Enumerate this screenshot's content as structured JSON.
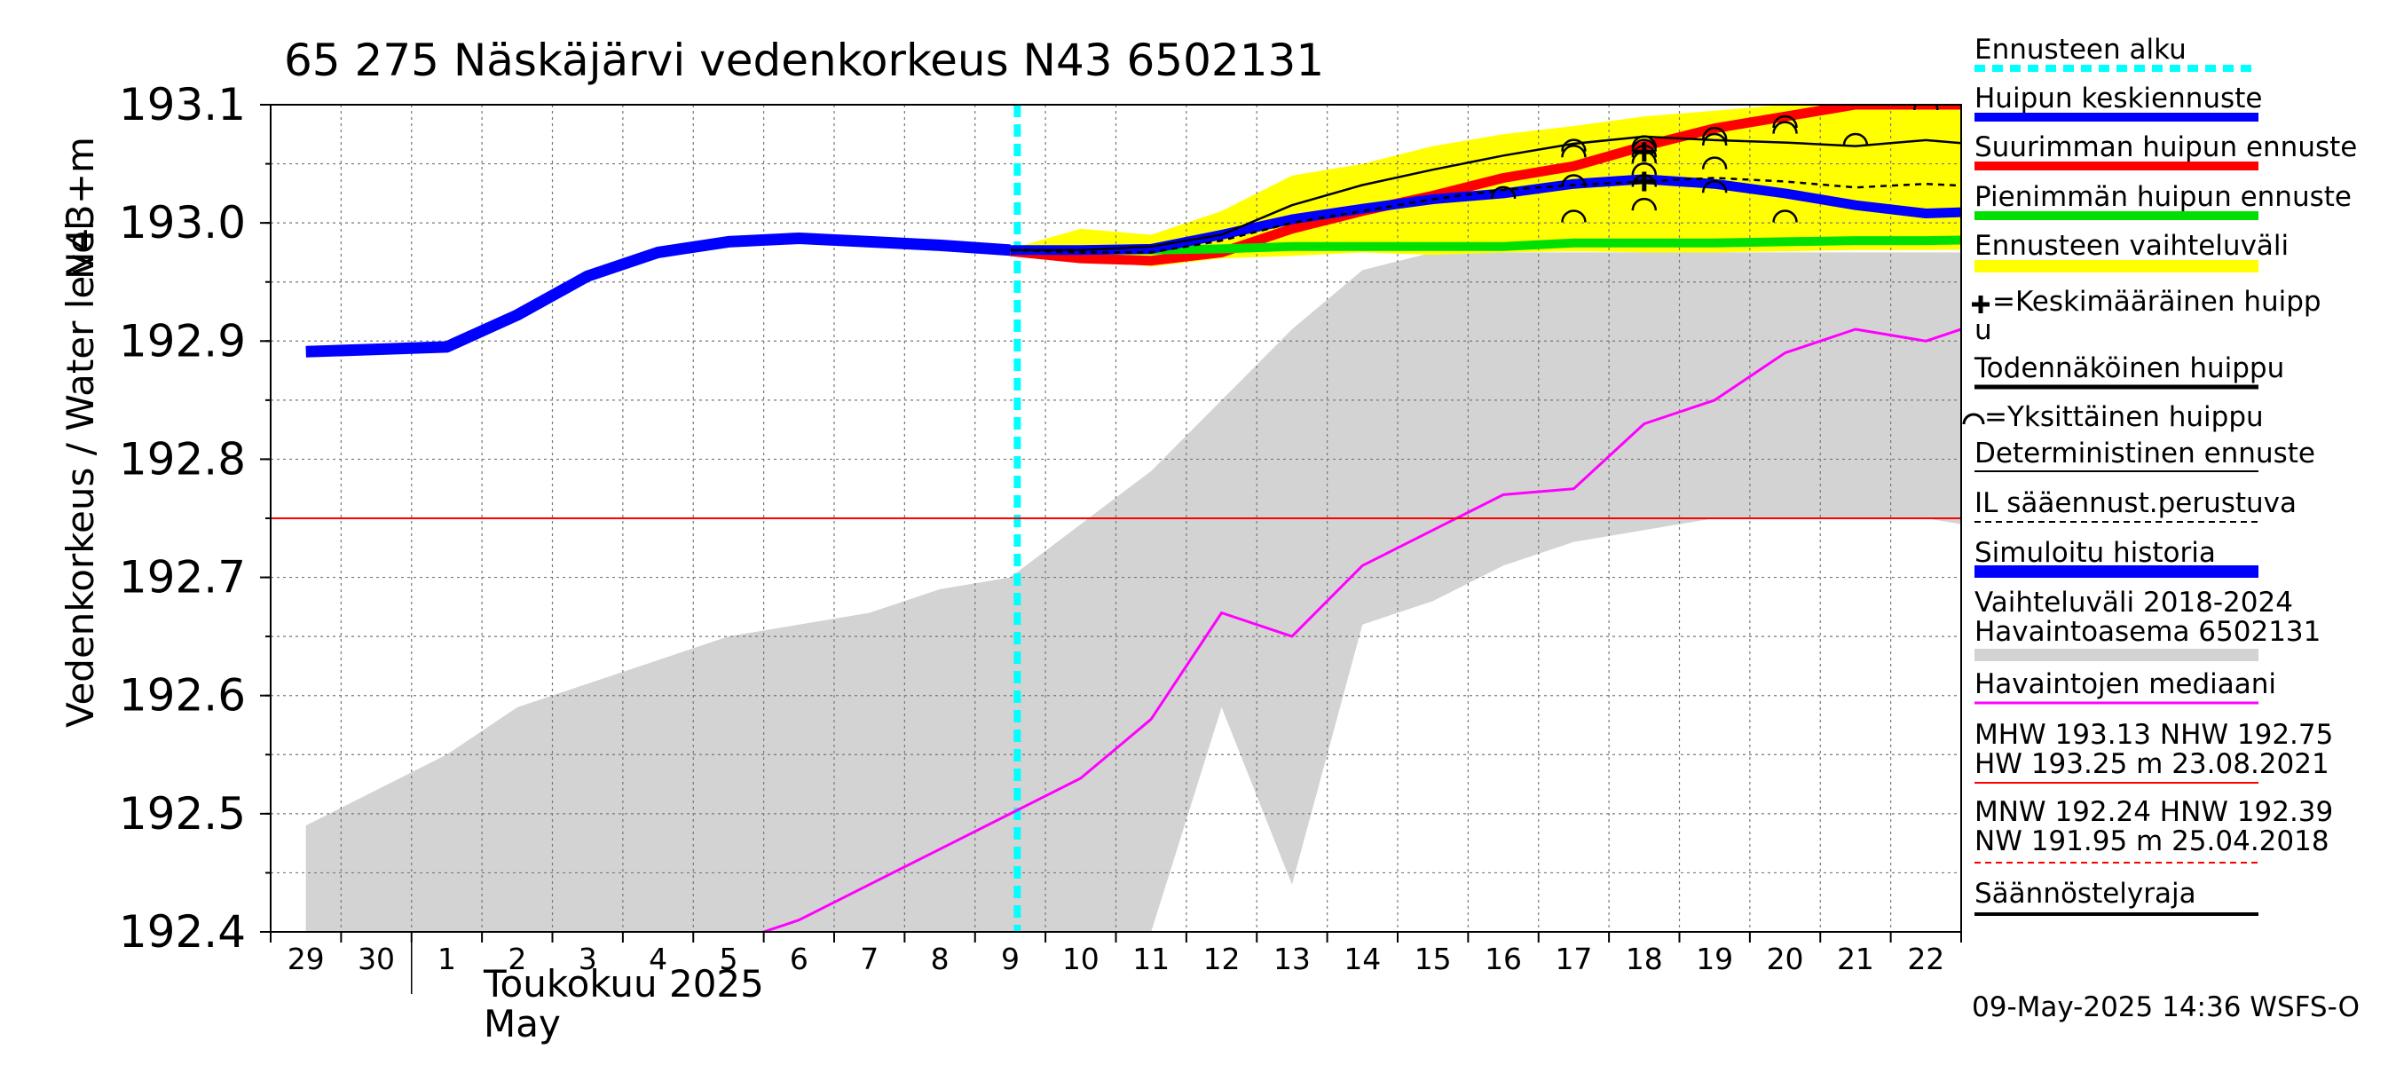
{
  "chart_data": {
    "type": "line",
    "title": "65 275 Näskäjärvi vedenkorkeus N43 6502131",
    "ylabel": "Vedenkorkeus / Water level",
    "yunit": "N43+m",
    "ylim": [
      192.4,
      193.1
    ],
    "yticks": [
      "193.1",
      "193.0",
      "192.9",
      "192.8",
      "192.7",
      "192.6",
      "192.5",
      "192.4"
    ],
    "x_day_labels": [
      "29",
      "30",
      "1",
      "2",
      "3",
      "4",
      "5",
      "6",
      "7",
      "8",
      "9",
      "10",
      "11",
      "12",
      "13",
      "14",
      "15",
      "16",
      "17",
      "18",
      "19",
      "20",
      "21",
      "22"
    ],
    "month_label": "Toukokuu  2025",
    "month_label_en": "May",
    "x_start": "2025-04-29",
    "x_end": "2025-05-23",
    "forecast_start": "2025-05-09",
    "grid": true,
    "legend_position": "right",
    "series": [
      {
        "name": "Ennusteen vaihteluväli",
        "kind": "band",
        "color": "#ffff00",
        "x": [
          "2025-05-09",
          "2025-05-10",
          "2025-05-11",
          "2025-05-12",
          "2025-05-13",
          "2025-05-14",
          "2025-05-15",
          "2025-05-16",
          "2025-05-17",
          "2025-05-18",
          "2025-05-19",
          "2025-05-20",
          "2025-05-21",
          "2025-05-22",
          "2025-05-23"
        ],
        "upper": [
          192.978,
          192.995,
          192.99,
          193.01,
          193.04,
          193.05,
          193.065,
          193.075,
          193.082,
          193.09,
          193.095,
          193.1,
          193.1,
          193.1,
          193.1
        ],
        "lower": [
          192.978,
          192.97,
          192.963,
          192.97,
          192.972,
          192.975,
          192.973,
          192.975,
          192.976,
          192.975,
          192.975,
          192.976,
          192.977,
          192.977,
          192.978
        ]
      },
      {
        "name": "Vaihteluväli 2018-2024",
        "kind": "band",
        "color": "#d3d3d3",
        "x": [
          "2025-04-29",
          "2025-04-30",
          "2025-05-01",
          "2025-05-02",
          "2025-05-03",
          "2025-05-04",
          "2025-05-05",
          "2025-05-06",
          "2025-05-07",
          "2025-05-08",
          "2025-05-09",
          "2025-05-10",
          "2025-05-11",
          "2025-05-12",
          "2025-05-13",
          "2025-05-14",
          "2025-05-15",
          "2025-05-16",
          "2025-05-17",
          "2025-05-18",
          "2025-05-19",
          "2025-05-20",
          "2025-05-21",
          "2025-05-22",
          "2025-05-23"
        ],
        "upper": [
          192.49,
          192.52,
          192.55,
          192.59,
          192.61,
          192.63,
          192.65,
          192.66,
          192.67,
          192.69,
          192.7,
          192.745,
          192.79,
          192.85,
          192.91,
          192.96,
          192.975,
          192.975,
          192.975,
          192.975,
          192.975,
          192.975,
          192.975,
          192.975,
          192.975
        ],
        "lower": [
          192.4,
          192.4,
          192.4,
          192.4,
          192.4,
          192.4,
          192.4,
          192.4,
          192.4,
          192.4,
          192.4,
          192.4,
          192.4,
          192.59,
          192.44,
          192.66,
          192.68,
          192.71,
          192.73,
          192.74,
          192.75,
          192.75,
          192.75,
          192.75,
          192.74
        ]
      },
      {
        "name": "Simuloitu historia",
        "color": "#0000ff",
        "x": [
          "2025-04-29",
          "2025-04-30",
          "2025-05-01",
          "2025-05-02",
          "2025-05-03",
          "2025-05-04",
          "2025-05-05",
          "2025-05-06",
          "2025-05-07",
          "2025-05-08",
          "2025-05-09"
        ],
        "values": [
          192.891,
          192.893,
          192.895,
          192.922,
          192.955,
          192.975,
          192.984,
          192.987,
          192.984,
          192.981,
          192.977
        ]
      },
      {
        "name": "Suurimman huipun ennuste",
        "color": "#ff0000",
        "x": [
          "2025-05-09",
          "2025-05-10",
          "2025-05-11",
          "2025-05-12",
          "2025-05-13",
          "2025-05-14",
          "2025-05-15",
          "2025-05-16",
          "2025-05-17",
          "2025-05-18",
          "2025-05-19",
          "2025-05-20",
          "2025-05-21",
          "2025-05-22",
          "2025-05-23"
        ],
        "values": [
          192.976,
          192.97,
          192.968,
          192.975,
          192.995,
          193.01,
          193.023,
          193.038,
          193.048,
          193.065,
          193.08,
          193.09,
          193.1,
          193.1,
          193.1
        ]
      },
      {
        "name": "Pienimmän huipun ennuste",
        "color": "#00e000",
        "x": [
          "2025-05-09",
          "2025-05-10",
          "2025-05-11",
          "2025-05-12",
          "2025-05-13",
          "2025-05-14",
          "2025-05-15",
          "2025-05-16",
          "2025-05-17",
          "2025-05-18",
          "2025-05-19",
          "2025-05-20",
          "2025-05-21",
          "2025-05-22",
          "2025-05-23"
        ],
        "values": [
          192.977,
          192.977,
          192.977,
          192.978,
          192.98,
          192.98,
          192.98,
          192.98,
          192.983,
          192.983,
          192.983,
          192.984,
          192.985,
          192.985,
          192.986
        ]
      },
      {
        "name": "Huipun keskiennuste",
        "color": "#0000ff",
        "x": [
          "2025-05-09",
          "2025-05-10",
          "2025-05-11",
          "2025-05-12",
          "2025-05-13",
          "2025-05-14",
          "2025-05-15",
          "2025-05-16",
          "2025-05-17",
          "2025-05-18",
          "2025-05-19",
          "2025-05-20",
          "2025-05-21",
          "2025-05-22",
          "2025-05-23"
        ],
        "values": [
          192.977,
          192.977,
          192.978,
          192.99,
          193.003,
          193.012,
          193.02,
          193.025,
          193.033,
          193.037,
          193.033,
          193.025,
          193.015,
          193.008,
          193.01
        ]
      },
      {
        "name": "Todennäköinen huippu",
        "color": "#000000",
        "x": [
          "2025-05-09",
          "2025-05-10",
          "2025-05-11",
          "2025-05-12",
          "2025-05-13",
          "2025-05-14",
          "2025-05-15",
          "2025-05-16",
          "2025-05-17",
          "2025-05-18",
          "2025-05-19",
          "2025-05-20",
          "2025-05-21",
          "2025-05-22",
          "2025-05-23"
        ],
        "values": [
          192.977,
          192.977,
          192.98,
          192.99,
          193.015,
          193.032,
          193.045,
          193.057,
          193.067,
          193.073,
          193.07,
          193.068,
          193.065,
          193.07,
          193.065
        ]
      },
      {
        "name": "Deterministinen ennuste",
        "color": "#000000",
        "dash": true,
        "x": [
          "2025-05-09",
          "2025-05-10",
          "2025-05-11",
          "2025-05-12",
          "2025-05-13",
          "2025-05-14",
          "2025-05-15",
          "2025-05-16",
          "2025-05-17",
          "2025-05-18",
          "2025-05-19",
          "2025-05-20",
          "2025-05-21",
          "2025-05-22",
          "2025-05-23"
        ],
        "values": [
          192.977,
          192.975,
          192.975,
          192.985,
          193.0,
          193.01,
          193.02,
          193.028,
          193.032,
          193.035,
          193.038,
          193.035,
          193.03,
          193.033,
          193.03
        ]
      },
      {
        "name": "Havaintojen mediaani",
        "color": "#ff00ff",
        "x": [
          "2025-05-05",
          "2025-05-06",
          "2025-05-07",
          "2025-05-08",
          "2025-05-09",
          "2025-05-10",
          "2025-05-11",
          "2025-05-12",
          "2025-05-13",
          "2025-05-14",
          "2025-05-15",
          "2025-05-16",
          "2025-05-17",
          "2025-05-18",
          "2025-05-19",
          "2025-05-20",
          "2025-05-21",
          "2025-05-22",
          "2025-05-23"
        ],
        "values": [
          192.39,
          192.41,
          192.44,
          192.47,
          192.5,
          192.53,
          192.58,
          192.67,
          192.65,
          192.71,
          192.74,
          192.77,
          192.775,
          192.83,
          192.85,
          192.89,
          192.91,
          192.9,
          192.92
        ]
      },
      {
        "name": "MHW 193.13 NHW 192.75",
        "kind": "hline",
        "color": "#ff0000",
        "value": 192.75
      }
    ],
    "peak_markers": [
      {
        "x": "2025-05-16",
        "values": [
          193.025
        ]
      },
      {
        "x": "2025-05-17",
        "values": [
          193.005,
          193.035,
          193.06,
          193.065
        ]
      },
      {
        "x": "2025-05-18",
        "values": [
          193.015,
          193.035,
          193.045,
          193.055,
          193.06,
          193.065,
          193.068
        ]
      },
      {
        "x": "2025-05-19",
        "values": [
          193.03,
          193.05,
          193.07,
          193.075
        ]
      },
      {
        "x": "2025-05-20",
        "values": [
          193.005,
          193.08,
          193.085
        ]
      },
      {
        "x": "2025-05-21",
        "values": [
          193.07
        ]
      },
      {
        "x": "2025-05-22",
        "values": [
          193.1
        ]
      }
    ],
    "mean_peak_markers": [
      {
        "x": "2025-05-18",
        "values": [
          193.035,
          193.06
        ]
      }
    ]
  },
  "legend": {
    "items": [
      "Ennusteen alku",
      "Huipun keskiennuste",
      "Suurimman huipun ennuste",
      "Pienimmän huipun ennuste",
      "Ennusteen vaihteluväli",
      "=Keskimääräinen huipp",
      "u",
      "Todennäköinen huippu",
      "=Yksittäinen huippu",
      "Deterministinen ennuste",
      "IL sääennust.perustuva",
      "Simuloitu historia",
      "Vaihteluväli 2018-2024",
      " Havaintoasema 6502131",
      "Havaintojen mediaani",
      "MHW 193.13 NHW 192.75",
      "HW 193.25 m 23.08.2021",
      "MNW 192.24 HNW 192.39",
      "NW 191.95 m 25.04.2018",
      "Säännöstelyraja"
    ],
    "colors": {
      "forecast_start": "#00ffff",
      "mean_forecast": "#0000ff",
      "max_forecast": "#ff0000",
      "min_forecast": "#00e000",
      "forecast_band": "#ffff00",
      "probable": "#000000",
      "deterministic": "#000000",
      "il": "#000000",
      "simulated": "#0000ff",
      "history_band": "#d3d3d3",
      "median": "#ff00ff",
      "mhw": "#ff0000",
      "mnw": "#ff0000",
      "regulation": "#000000"
    }
  },
  "footer": {
    "timestamp": "09-May-2025 14:36 WSFS-O"
  }
}
